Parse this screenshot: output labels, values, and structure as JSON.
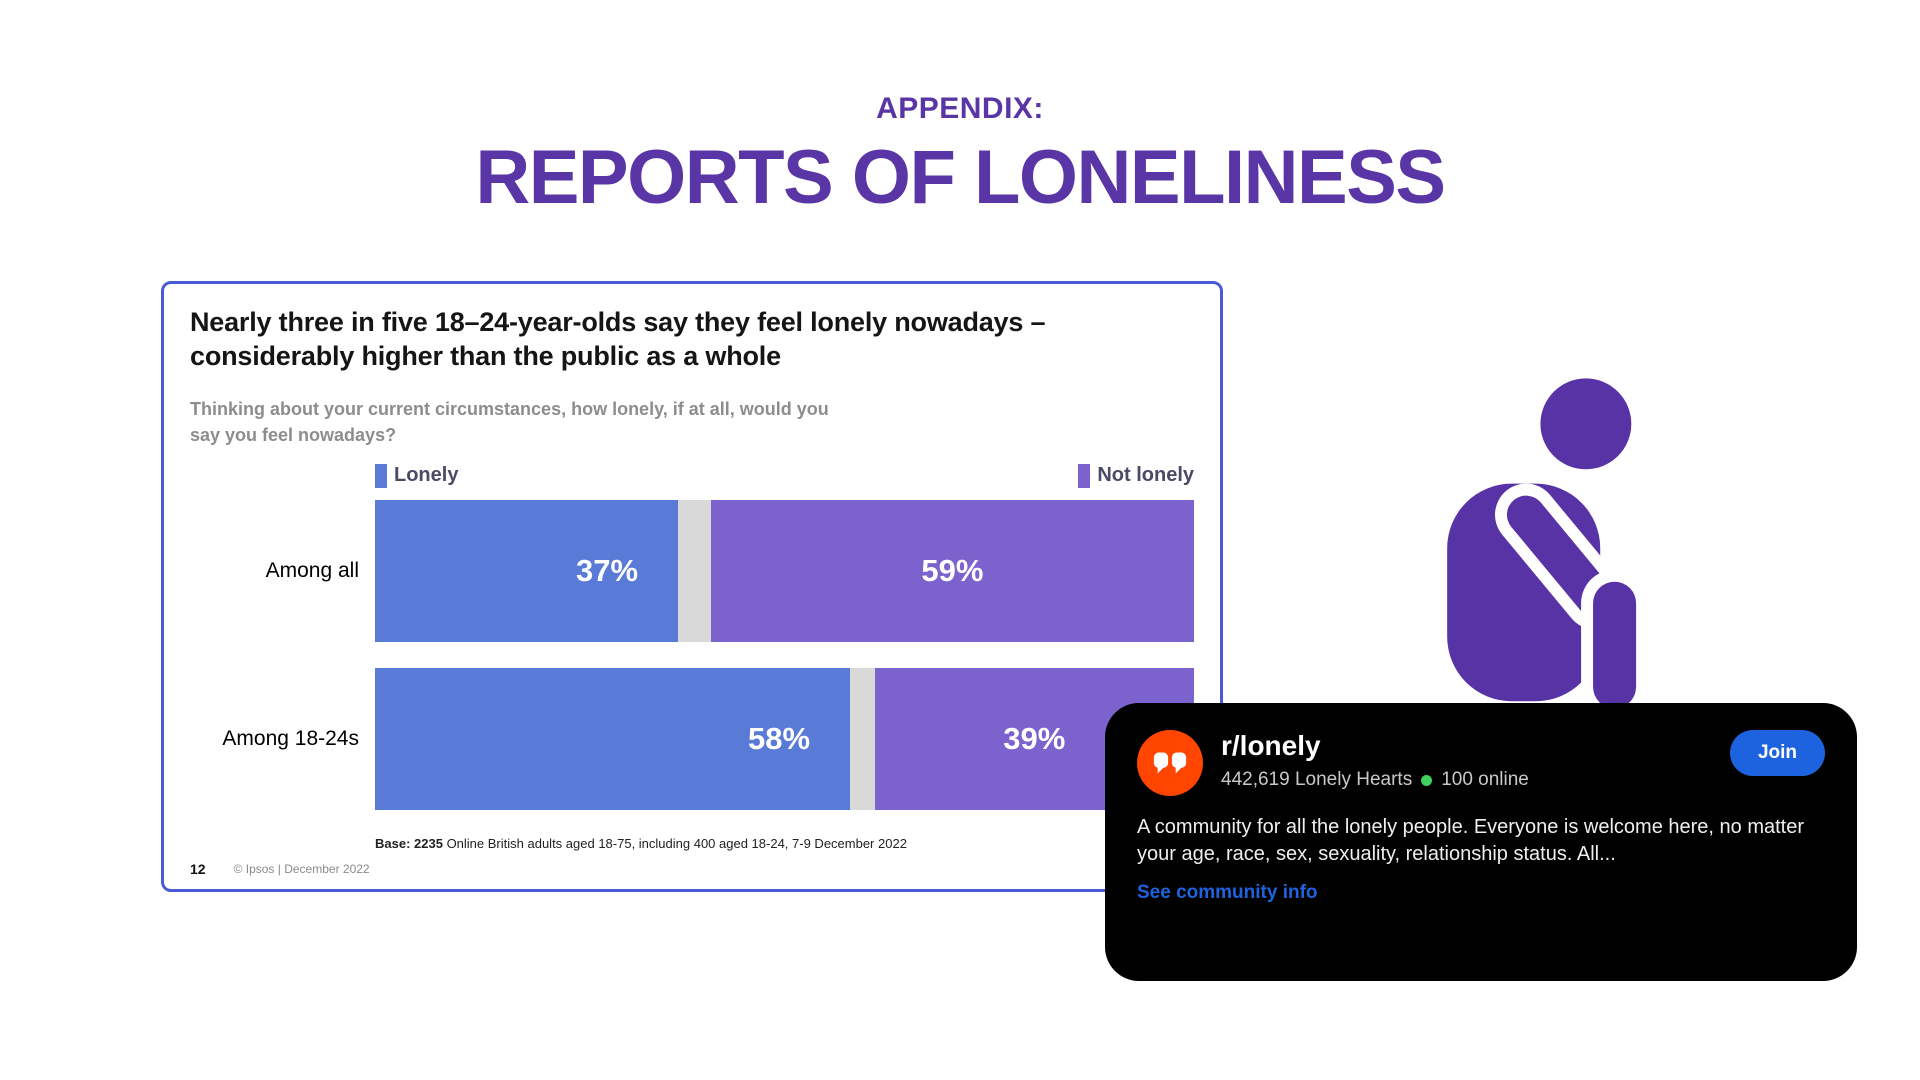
{
  "page": {
    "kicker": "APPENDIX:",
    "title": "REPORTS OF LONELINESS"
  },
  "slide": {
    "headline": "Nearly three in five 18–24-year-olds say they feel lonely nowadays – considerably higher than the public as a whole",
    "question": "Thinking about your current circumstances, how lonely, if at all, would you say you feel nowadays?",
    "base_bold": "Base: 2235",
    "base_rest": " Online British adults aged 18-75, including 400 aged 18-24, 7-9 December 2022",
    "page_number": "12",
    "copyright": "© Ipsos | December 2022"
  },
  "chart_data": {
    "type": "bar",
    "orientation": "horizontal",
    "stacked": true,
    "categories": [
      "Among all",
      "Among 18-24s"
    ],
    "series": [
      {
        "name": "Lonely",
        "values": [
          37,
          58
        ],
        "color": "#5a7ad8"
      },
      {
        "name": "Not lonely",
        "values": [
          59,
          39
        ],
        "color": "#7b62cd"
      }
    ],
    "value_suffix": "%",
    "xlim": [
      0,
      100
    ],
    "legend_position": "top"
  },
  "reddit_card": {
    "community": "r/lonely",
    "members": "442,619 Lonely Hearts",
    "online": "100 online",
    "join_label": "Join",
    "description": "A community for all the lonely people. Everyone is welcome here, no matter your age, race, sex, sexuality, relationship status. All...",
    "link": "See community info"
  },
  "colors": {
    "heading_purple": "#5a35a6",
    "slide_border": "#4a5cd5",
    "gap_gray": "#d9d9d9",
    "figure_purple": "#5733a6",
    "reddit_accent": "#1d63e0",
    "link_blue": "#2062dd",
    "avatar_orange": "#ff4500",
    "online_green": "#3ed160"
  }
}
